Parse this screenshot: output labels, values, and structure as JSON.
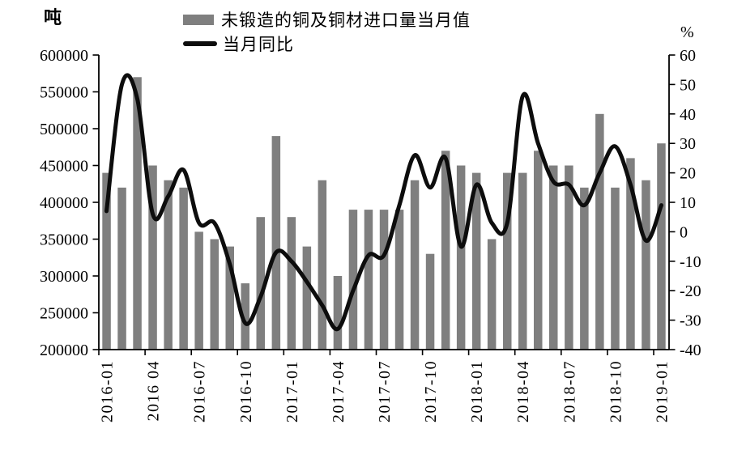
{
  "chart_data": {
    "type": "bar+line",
    "title": "",
    "categories": [
      "2016-01",
      "2016-02",
      "2016-03",
      "2016-04",
      "2016-05",
      "2016-06",
      "2016-07",
      "2016-08",
      "2016-09",
      "2016-10",
      "2016-11",
      "2016-12",
      "2017-01",
      "2017-02",
      "2017-03",
      "2017-04",
      "2017-05",
      "2017-06",
      "2017-07",
      "2017-08",
      "2017-09",
      "2017-10",
      "2017-11",
      "2017-12",
      "2018-01",
      "2018-02",
      "2018-03",
      "2018-04",
      "2018-05",
      "2018-06",
      "2018-07",
      "2018-08",
      "2018-09",
      "2018-10",
      "2018-11",
      "2018-12",
      "2019-01"
    ],
    "x_axis": {
      "tick_every": 3,
      "tick_labels": [
        "2016-01",
        "2016 04",
        "2016-07",
        "2016-10",
        "2017-01",
        "2017-04",
        "2017-07",
        "2017-10",
        "2018-01",
        "2018-04",
        "2018-07",
        "2018-10",
        "2019-01"
      ]
    },
    "left_axis": {
      "unit": "吨",
      "min": 200000,
      "max": 600000,
      "step": 50000,
      "tick_labels": [
        "600000",
        "550000",
        "500000",
        "450000",
        "400000",
        "350000",
        "300000",
        "250000",
        "200000"
      ]
    },
    "right_axis": {
      "unit": "%",
      "min": -40,
      "max": 60,
      "step": 10,
      "tick_labels": [
        "60",
        "50",
        "40",
        "30",
        "20",
        "10",
        "0",
        "-10",
        "-20",
        "-30",
        "-40"
      ]
    },
    "series": [
      {
        "name": "未锻造的铜及铜材进口量当月值",
        "type": "bar",
        "axis": "left",
        "color": "#7f7f7f",
        "values": [
          440000,
          420000,
          570000,
          450000,
          430000,
          420000,
          360000,
          350000,
          340000,
          290000,
          380000,
          490000,
          380000,
          340000,
          430000,
          300000,
          390000,
          390000,
          390000,
          390000,
          430000,
          330000,
          470000,
          450000,
          440000,
          350000,
          440000,
          440000,
          470000,
          450000,
          450000,
          420000,
          520000,
          420000,
          460000,
          430000,
          480000
        ]
      },
      {
        "name": "当月同比",
        "type": "line",
        "axis": "right",
        "color": "#0d0d0d",
        "values": [
          7,
          50,
          45,
          6,
          12,
          21,
          3,
          3,
          -11,
          -31,
          -22,
          -7,
          -10,
          -17,
          -25,
          -33,
          -20,
          -8,
          -8,
          9,
          26,
          15,
          25,
          -5,
          16,
          3,
          3,
          46,
          30,
          17,
          16,
          9,
          20,
          29,
          16,
          -3,
          9
        ]
      }
    ],
    "legend_position": "top",
    "grid": "off",
    "axis_color": "#000000",
    "background": "#ffffff"
  }
}
